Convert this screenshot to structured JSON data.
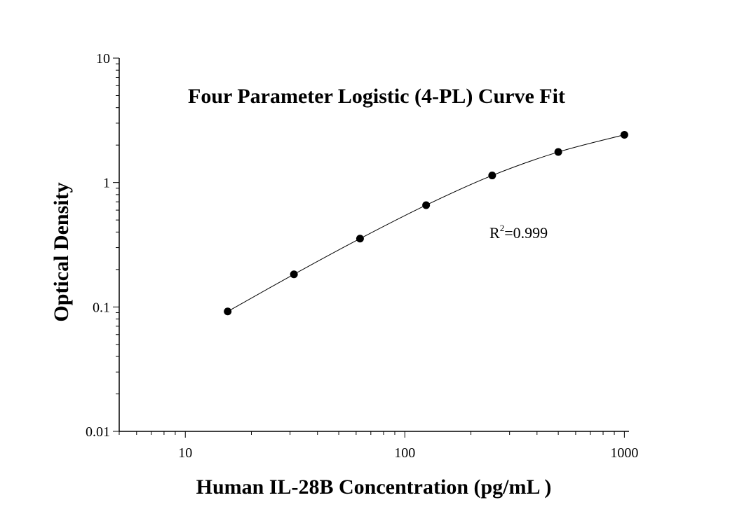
{
  "chart_data": {
    "type": "scatter",
    "title": "Four Parameter Logistic (4-PL) Curve Fit",
    "xlabel": "Human IL-28B Concentration (pg/mL )",
    "ylabel": "Optical Density",
    "x_scale": "log",
    "y_scale": "log",
    "xlim": [
      5,
      1050
    ],
    "ylim": [
      0.01,
      10
    ],
    "x_ticks": [
      10,
      100,
      1000
    ],
    "x_tick_labels": [
      "10",
      "100",
      "1000"
    ],
    "y_ticks": [
      0.01,
      0.1,
      1,
      10
    ],
    "y_tick_labels": [
      "0.01",
      "0.1",
      "1",
      "10"
    ],
    "grid": false,
    "legend": "none",
    "series": [
      {
        "x": [
          15.6,
          31.25,
          62.5,
          125,
          250,
          500,
          1000
        ],
        "y": [
          0.092,
          0.183,
          0.354,
          0.658,
          1.14,
          1.76,
          2.42
        ],
        "marker": "circle",
        "color": "#000000",
        "fit_curve": true
      }
    ],
    "annotation": {
      "base": "R",
      "sup": "2",
      "rest": "=0.999"
    }
  }
}
